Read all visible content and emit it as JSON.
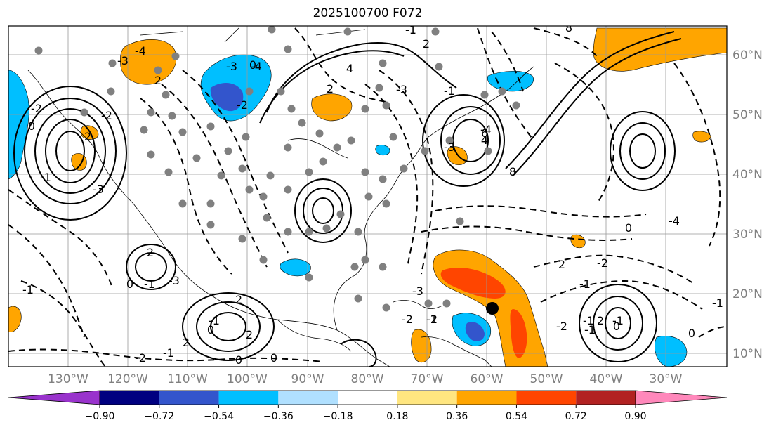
{
  "title": "2025100700 F072",
  "latitude_labels": [
    "60°N",
    "50°N",
    "40°N",
    "30°N",
    "20°N",
    "10°N"
  ],
  "longitude_labels": [
    "130°W",
    "120°W",
    "110°W",
    "100°W",
    "90°W",
    "80°W",
    "70°W",
    "60°W",
    "50°W",
    "40°W",
    "30°W"
  ],
  "colorbar": {
    "tick_labels": [
      "−0.90",
      "−0.72",
      "−0.54",
      "−0.36",
      "−0.18",
      "0.18",
      "0.36",
      "0.54",
      "0.72",
      "0.90"
    ],
    "colors": [
      "#9933cc",
      "#000080",
      "#3355cc",
      "#00bfff",
      "#b0e0ff",
      "#ffffff",
      "#ffe680",
      "#ffa500",
      "#ff4500",
      "#b22222",
      "#ff88bb"
    ]
  },
  "contour_labels": [
    "-4",
    "-3",
    "2",
    "-3",
    "0",
    "-4",
    "-2",
    "2",
    "4",
    "-3",
    "8",
    "-1",
    "2",
    "-1",
    "-3",
    "-4",
    "4",
    "6",
    "8",
    "0",
    "-2",
    "-3",
    "-1",
    "2",
    "-2",
    "2",
    "-1",
    "-3",
    "0",
    "2",
    "-1",
    "0",
    "2",
    "0",
    "-2",
    "2",
    "-1",
    "0",
    "-4",
    "0",
    "-2",
    "-1",
    "-1",
    "0",
    "-1",
    "2",
    "-1",
    "0",
    "-2",
    "-1",
    "-1",
    "2",
    "-3",
    "-2",
    "2",
    "-1"
  ],
  "colors": {
    "positive_contour": "#000000",
    "negative_contour": "#000000",
    "graticule": "#999999",
    "station_marker": "#808080",
    "center_marker": "#000000",
    "land_outline": "#000000"
  }
}
